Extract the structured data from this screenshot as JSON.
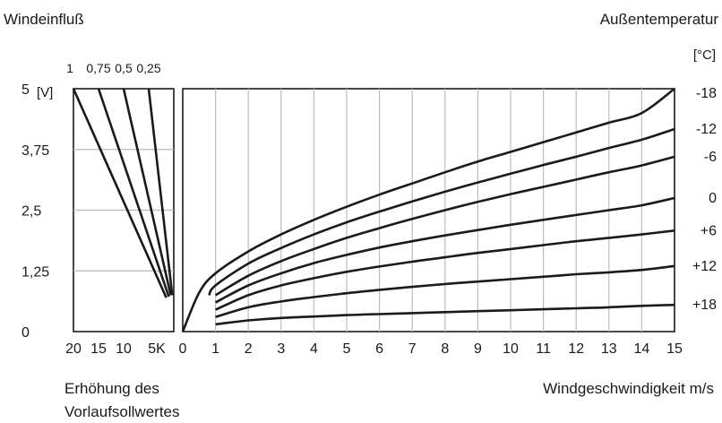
{
  "chart_data": [
    {
      "type": "line",
      "title": "Windeinfluß",
      "top_labels": [
        "1",
        "0,75",
        "0,5",
        "0,25"
      ],
      "ylabel": "",
      "y_unit": "[V]",
      "ylim": [
        0,
        5
      ],
      "y_ticks": [
        "0",
        "1,25",
        "2,5",
        "3,75",
        "5"
      ],
      "xlim": [
        20,
        0
      ],
      "x_ticks": [
        "20",
        "15",
        "10",
        "5K"
      ],
      "xlabel_lines": [
        "Erhöhung des",
        "Vorlaufsollwertes"
      ],
      "grid": true,
      "series": [
        {
          "name": "1",
          "x": [
            20,
            1.5
          ],
          "y": [
            5,
            0.7
          ]
        },
        {
          "name": "0,75",
          "x": [
            15,
            1.0
          ],
          "y": [
            5,
            0.72
          ]
        },
        {
          "name": "0,5",
          "x": [
            10,
            0.6
          ],
          "y": [
            5,
            0.75
          ]
        },
        {
          "name": "0,25",
          "x": [
            5,
            0.3
          ],
          "y": [
            5,
            0.75
          ]
        }
      ]
    },
    {
      "type": "line",
      "title": "Außentemperatur",
      "right_unit": "[°C]",
      "xlabel": "Windgeschwindigkeit m/s",
      "xlim": [
        0,
        15
      ],
      "x_ticks": [
        "0",
        "1",
        "2",
        "3",
        "4",
        "5",
        "6",
        "7",
        "8",
        "9",
        "10",
        "11",
        "12",
        "13",
        "14",
        "15"
      ],
      "ylim": [
        0,
        5
      ],
      "grid": true,
      "series": [
        {
          "name": "-18",
          "x": [
            0,
            0.5,
            1,
            2,
            3,
            4,
            5,
            6,
            7,
            8,
            9,
            10,
            11,
            12,
            13,
            14,
            15
          ],
          "y": [
            0,
            0.8,
            1.2,
            1.65,
            2.0,
            2.3,
            2.57,
            2.82,
            3.05,
            3.28,
            3.5,
            3.7,
            3.9,
            4.1,
            4.3,
            4.5,
            5.0
          ]
        },
        {
          "name": "-12",
          "x": [
            0.8,
            1,
            2,
            3,
            4,
            5,
            6,
            7,
            8,
            9,
            10,
            11,
            12,
            13,
            14,
            15
          ],
          "y": [
            0.75,
            0.95,
            1.4,
            1.72,
            2.0,
            2.25,
            2.47,
            2.68,
            2.88,
            3.07,
            3.25,
            3.43,
            3.6,
            3.78,
            3.95,
            4.17
          ]
        },
        {
          "name": "-6",
          "x": [
            1,
            2,
            3,
            4,
            5,
            6,
            7,
            8,
            9,
            10,
            11,
            12,
            13,
            14,
            15
          ],
          "y": [
            0.75,
            1.15,
            1.45,
            1.7,
            1.93,
            2.13,
            2.32,
            2.5,
            2.67,
            2.83,
            2.98,
            3.13,
            3.28,
            3.42,
            3.6
          ]
        },
        {
          "name": "0",
          "x": [
            1,
            2,
            3,
            4,
            5,
            6,
            7,
            8,
            9,
            10,
            11,
            12,
            13,
            14,
            15
          ],
          "y": [
            0.6,
            0.95,
            1.2,
            1.41,
            1.58,
            1.73,
            1.86,
            1.98,
            2.09,
            2.2,
            2.3,
            2.4,
            2.5,
            2.6,
            2.75
          ]
        },
        {
          "name": "+6",
          "x": [
            1,
            2,
            3,
            4,
            5,
            6,
            7,
            8,
            9,
            10,
            11,
            12,
            13,
            14,
            15
          ],
          "y": [
            0.45,
            0.75,
            0.95,
            1.1,
            1.23,
            1.34,
            1.44,
            1.53,
            1.62,
            1.7,
            1.78,
            1.86,
            1.93,
            2.0,
            2.08
          ]
        },
        {
          "name": "+12",
          "x": [
            1,
            2,
            3,
            4,
            5,
            6,
            7,
            8,
            9,
            10,
            11,
            12,
            13,
            14,
            15
          ],
          "y": [
            0.3,
            0.5,
            0.62,
            0.71,
            0.79,
            0.86,
            0.92,
            0.98,
            1.03,
            1.08,
            1.13,
            1.18,
            1.22,
            1.27,
            1.35
          ]
        },
        {
          "name": "+18",
          "x": [
            1,
            2,
            3,
            4,
            5,
            6,
            7,
            8,
            9,
            10,
            11,
            12,
            13,
            14,
            15
          ],
          "y": [
            0.15,
            0.23,
            0.28,
            0.31,
            0.34,
            0.36,
            0.38,
            0.4,
            0.42,
            0.44,
            0.46,
            0.48,
            0.5,
            0.53,
            0.55
          ]
        }
      ]
    }
  ]
}
